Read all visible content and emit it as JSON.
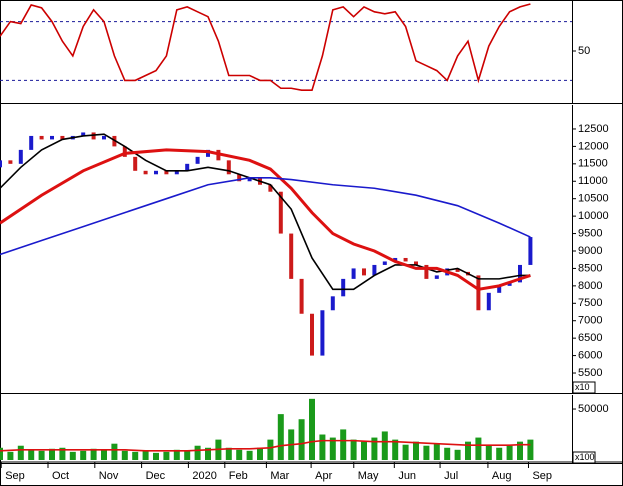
{
  "chart_data": [
    {
      "type": "line",
      "xlim": [
        0,
        55
      ],
      "ylim": [
        0,
        100
      ],
      "yticks": [
        50
      ],
      "levels": [
        20,
        80
      ],
      "x": [
        0,
        1,
        2,
        3,
        4,
        5,
        6,
        7,
        8,
        9,
        10,
        11,
        12,
        13,
        14,
        15,
        16,
        17,
        18,
        19,
        20,
        21,
        22,
        23,
        24,
        25,
        26,
        27,
        28,
        29,
        30,
        31,
        32,
        33,
        34,
        35,
        36,
        37,
        38,
        39,
        40,
        41,
        42,
        43,
        44,
        45,
        46,
        47,
        48,
        49,
        50,
        51
      ],
      "series": [
        {
          "color": "#cc0000",
          "values": [
            65,
            80,
            78,
            97,
            94,
            80,
            60,
            45,
            75,
            92,
            80,
            45,
            20,
            20,
            25,
            30,
            45,
            92,
            95,
            90,
            85,
            60,
            25,
            25,
            25,
            20,
            20,
            12,
            12,
            10,
            10,
            45,
            92,
            95,
            85,
            95,
            90,
            88,
            90,
            75,
            40,
            35,
            30,
            20,
            45,
            60,
            20,
            55,
            75,
            90,
            95,
            98
          ]
        }
      ]
    },
    {
      "type": "candlestick",
      "xlim": [
        0,
        55
      ],
      "ylim": [
        5013,
        13130
      ],
      "yticks": [
        5500,
        6000,
        6500,
        7000,
        7500,
        8000,
        8500,
        9000,
        9500,
        10000,
        10500,
        11000,
        11500,
        12000,
        12500
      ],
      "y_unit_label": "x10",
      "up_color": "#1a1acc",
      "down_color": "#cc1a1a",
      "x": [
        0,
        1,
        2,
        3,
        4,
        5,
        6,
        7,
        8,
        9,
        10,
        11,
        12,
        13,
        14,
        15,
        16,
        17,
        18,
        19,
        20,
        21,
        22,
        23,
        24,
        25,
        26,
        27,
        28,
        29,
        30,
        31,
        32,
        33,
        34,
        35,
        36,
        37,
        38,
        39,
        40,
        41,
        42,
        43,
        44,
        45,
        46,
        47,
        48,
        49,
        50,
        51
      ],
      "open": [
        11400,
        11600,
        11500,
        11900,
        12300,
        12200,
        12300,
        12200,
        12300,
        12400,
        12200,
        12300,
        12000,
        11700,
        11300,
        11200,
        11300,
        11200,
        11300,
        11500,
        11700,
        11900,
        11600,
        11200,
        11000,
        11100,
        10900,
        10700,
        9500,
        8200,
        7200,
        6000,
        7300,
        7700,
        8200,
        8500,
        8300,
        8600,
        8700,
        8800,
        8700,
        8600,
        8200,
        8300,
        8500,
        8400,
        8300,
        7300,
        7800,
        8000,
        8100,
        8600
      ],
      "close": [
        11600,
        11500,
        11900,
        12300,
        12200,
        12300,
        12200,
        12300,
        12400,
        12200,
        12300,
        12000,
        11700,
        11300,
        11200,
        11300,
        11200,
        11300,
        11500,
        11700,
        11900,
        11600,
        11200,
        11000,
        11100,
        10900,
        10700,
        9500,
        8200,
        7200,
        6000,
        7300,
        7700,
        8200,
        8500,
        8300,
        8600,
        8700,
        8800,
        8700,
        8600,
        8200,
        8300,
        8500,
        8400,
        8300,
        7300,
        7800,
        8000,
        8100,
        8600,
        9400
      ],
      "series": [
        {
          "color": "#000000",
          "x": [
            0,
            2,
            4,
            6,
            8,
            10,
            12,
            14,
            16,
            18,
            20,
            22,
            24,
            26,
            28,
            30,
            32,
            34,
            36,
            38,
            40,
            42,
            44,
            46,
            48,
            50,
            51
          ],
          "values": [
            10800,
            11400,
            11900,
            12200,
            12300,
            12350,
            12000,
            11600,
            11300,
            11300,
            11400,
            11300,
            11100,
            10900,
            10200,
            8800,
            7900,
            7900,
            8300,
            8600,
            8600,
            8400,
            8500,
            8200,
            8200,
            8300,
            8300
          ]
        },
        {
          "color": "#dd1111",
          "x": [
            0,
            4,
            8,
            12,
            16,
            20,
            24,
            26,
            28,
            30,
            32,
            34,
            36,
            38,
            40,
            42,
            44,
            46,
            48,
            50,
            51
          ],
          "values": [
            9800,
            10600,
            11300,
            11800,
            11900,
            11850,
            11600,
            11350,
            10800,
            10100,
            9500,
            9200,
            9000,
            8700,
            8500,
            8500,
            8300,
            7900,
            8000,
            8200,
            8300
          ]
        },
        {
          "color": "#1a1acc",
          "x": [
            0,
            4,
            8,
            12,
            16,
            20,
            24,
            26,
            28,
            32,
            36,
            40,
            44,
            48,
            51
          ],
          "values": [
            8900,
            9300,
            9700,
            10100,
            10500,
            10900,
            11100,
            11100,
            11050,
            10900,
            10800,
            10600,
            10300,
            9800,
            9400
          ]
        }
      ]
    },
    {
      "type": "bar",
      "xlim": [
        0,
        55
      ],
      "ylim": [
        0,
        61800
      ],
      "yticks": [
        50000
      ],
      "y_unit_label": "x100",
      "color": "#1a9a1a",
      "x": [
        0,
        1,
        2,
        3,
        4,
        5,
        6,
        7,
        8,
        9,
        10,
        11,
        12,
        13,
        14,
        15,
        16,
        17,
        18,
        19,
        20,
        21,
        22,
        23,
        24,
        25,
        26,
        27,
        28,
        29,
        30,
        31,
        32,
        33,
        34,
        35,
        36,
        37,
        38,
        39,
        40,
        41,
        42,
        43,
        44,
        45,
        46,
        47,
        48,
        49,
        50,
        51
      ],
      "values": [
        12000,
        8000,
        14000,
        10000,
        9000,
        11000,
        12000,
        8000,
        9000,
        11000,
        10000,
        16000,
        9000,
        8000,
        9000,
        7000,
        8000,
        10000,
        9000,
        14000,
        12000,
        20000,
        12000,
        10000,
        9000,
        12000,
        20000,
        45000,
        30000,
        40000,
        60000,
        25000,
        22000,
        30000,
        20000,
        18000,
        22000,
        28000,
        20000,
        15000,
        18000,
        14000,
        16000,
        12000,
        10000,
        18000,
        22000,
        14000,
        12000,
        14000,
        18000,
        20000
      ],
      "series": [
        {
          "color": "#dd1111",
          "values": [
            9000,
            9500,
            10000,
            10000,
            10000,
            10000,
            10000,
            10000,
            10000,
            10000,
            10000,
            10000,
            10000,
            9500,
            9000,
            9000,
            9000,
            9000,
            9000,
            9500,
            10000,
            10500,
            11000,
            11000,
            11000,
            11500,
            12000,
            14000,
            15000,
            16000,
            18000,
            19000,
            19000,
            19000,
            19000,
            18500,
            18000,
            18000,
            18000,
            17500,
            17000,
            16500,
            16000,
            15500,
            15000,
            14500,
            14500,
            14500,
            14500,
            14500,
            15000,
            15000
          ]
        }
      ],
      "xticks": [
        {
          "value": 0.5,
          "label": "Sep"
        },
        {
          "value": 5,
          "label": "Oct"
        },
        {
          "value": 9.5,
          "label": "Nov"
        },
        {
          "value": 14,
          "label": "Dec"
        },
        {
          "value": 18.5,
          "label": "2020"
        },
        {
          "value": 22,
          "label": "Feb"
        },
        {
          "value": 26,
          "label": "Mar"
        },
        {
          "value": 30.3,
          "label": "Apr"
        },
        {
          "value": 34.4,
          "label": "May"
        },
        {
          "value": 38.3,
          "label": "Jun"
        },
        {
          "value": 42.7,
          "label": "Jul"
        },
        {
          "value": 47.3,
          "label": "Aug"
        },
        {
          "value": 51.2,
          "label": "Sep"
        }
      ]
    }
  ]
}
